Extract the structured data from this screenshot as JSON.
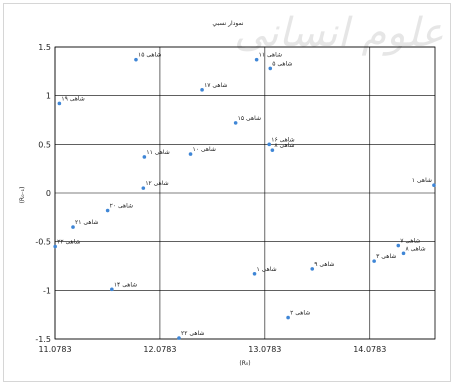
{
  "chart_data": {
    "type": "scatter",
    "title": "نمودار نسبي",
    "xlabel": "(R₀)",
    "ylabel": "(R₀₋₁)",
    "xlim": [
      11.0783,
      14.7
    ],
    "ylim": [
      -1.5,
      1.5
    ],
    "xticks": [
      11.0783,
      12.0783,
      13.0783,
      14.0783
    ],
    "xtick_labels": [
      "11.0783",
      "12.0783",
      "13.0783",
      "14.0783"
    ],
    "yticks": [
      -1.5,
      -1,
      -0.5,
      0,
      0.5,
      1,
      1.5
    ],
    "ytick_labels": [
      "-1.5",
      "-1",
      "-0.5",
      "0",
      "0.5",
      "1",
      "1.5"
    ],
    "grid": true,
    "legend": "none",
    "marker_color": "#3f86d6",
    "points": [
      {
        "x": 11.85,
        "y": 1.37,
        "label": "شاهی ۱۵"
      },
      {
        "x": 13.0,
        "y": 1.37,
        "label": "شاهی ۱۱"
      },
      {
        "x": 13.13,
        "y": 1.28,
        "label": "شاهی ۵"
      },
      {
        "x": 12.48,
        "y": 1.06,
        "label": "شاهی ۱۷"
      },
      {
        "x": 11.12,
        "y": 0.92,
        "label": "شاهی ۱۹"
      },
      {
        "x": 12.8,
        "y": 0.72,
        "label": "شاهی ۱۵"
      },
      {
        "x": 13.12,
        "y": 0.5,
        "label": "شاهی ۱۶"
      },
      {
        "x": 13.15,
        "y": 0.44,
        "label": "شاهی ۸"
      },
      {
        "x": 12.37,
        "y": 0.4,
        "label": "شاهی ۱۰"
      },
      {
        "x": 11.93,
        "y": 0.37,
        "label": "شاهی ۱۱"
      },
      {
        "x": 11.92,
        "y": 0.05,
        "label": "شاهی ۱۲"
      },
      {
        "x": 14.69,
        "y": 0.08,
        "label": "شاهی ۱"
      },
      {
        "x": 11.58,
        "y": -0.18,
        "label": "شاهی ۲۰"
      },
      {
        "x": 11.25,
        "y": -0.35,
        "label": "شاهی ۲۱"
      },
      {
        "x": 11.08,
        "y": -0.55,
        "label": "شاهی ۲۲"
      },
      {
        "x": 14.35,
        "y": -0.54,
        "label": "شاهی ۷"
      },
      {
        "x": 14.4,
        "y": -0.62,
        "label": "شاهی ۸"
      },
      {
        "x": 14.12,
        "y": -0.7,
        "label": "شاهی ۳"
      },
      {
        "x": 13.53,
        "y": -0.78,
        "label": "شاهی ۹"
      },
      {
        "x": 12.98,
        "y": -0.83,
        "label": "شاهی ۱"
      },
      {
        "x": 11.62,
        "y": -0.99,
        "label": "شاهی ۱۴"
      },
      {
        "x": 13.3,
        "y": -1.28,
        "label": "شاهی ۲"
      },
      {
        "x": 12.26,
        "y": -1.49,
        "label": "شاهی ۲۲"
      }
    ]
  }
}
